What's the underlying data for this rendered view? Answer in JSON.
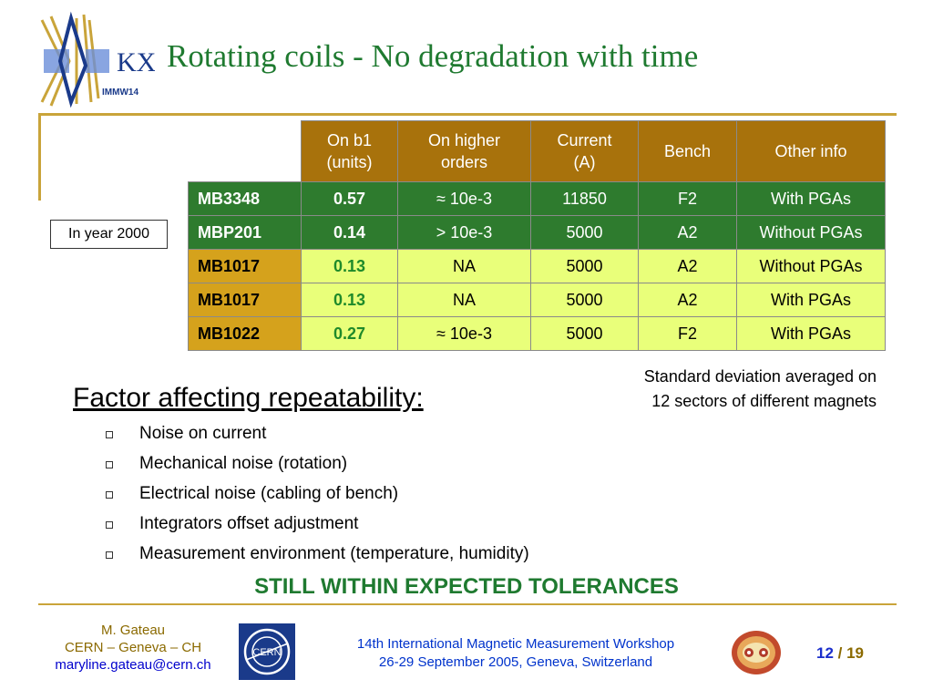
{
  "slide": {
    "title": "Rotating coils - No degradation with time",
    "logo_text": "IMMW14"
  },
  "table": {
    "headers": [
      "",
      "On b1\n(units)",
      "On higher\norders",
      "Current\n(A)",
      "Bench",
      "Other info"
    ],
    "rows": [
      {
        "name": "MB3348",
        "b1": "0.57",
        "higher": "≈ 10e-3",
        "current": "11850",
        "bench": "F2",
        "info": "With PGAs"
      },
      {
        "name": "MBP201",
        "b1": "0.14",
        "higher": "> 10e-3",
        "current": "5000",
        "bench": "A2",
        "info": "Without PGAs"
      },
      {
        "name": "MB1017",
        "b1": "0.13",
        "higher": "NA",
        "current": "5000",
        "bench": "A2",
        "info": "Without PGAs"
      },
      {
        "name": "MB1017",
        "b1": "0.13",
        "higher": "NA",
        "current": "5000",
        "bench": "A2",
        "info": "With PGAs"
      },
      {
        "name": "MB1022",
        "b1": "0.27",
        "higher": "≈ 10e-3",
        "current": "5000",
        "bench": "F2",
        "info": "With PGAs"
      }
    ],
    "year_label": "In year 2000",
    "note_line1": "Standard deviation averaged on",
    "note_line2": "12 sectors of different magnets"
  },
  "factors": {
    "heading": "Factor affecting repeatability:",
    "items": [
      "Noise on current",
      "Mechanical noise (rotation)",
      "Electrical noise (cabling of bench)",
      "Integrators offset adjustment",
      "Measurement environment (temperature, humidity)"
    ],
    "conclusion": "STILL WITHIN EXPECTED TOLERANCES"
  },
  "footer": {
    "author": "M. Gateau",
    "affiliation": "CERN – Geneva – CH",
    "email": "maryline.gateau@cern.ch",
    "workshop_line1": "14th International Magnetic Measurement Workshop",
    "workshop_line2": "26-29 September 2005, Geneva, Switzerland",
    "page": "12",
    "page_sep": " / ",
    "page_total": "19",
    "cern_logo_text": "CERN"
  },
  "colors": {
    "title_green": "#1f7a30",
    "gold": "#c9a43a",
    "header_brown": "#a8720c",
    "row_dark_green": "#2e7b2e",
    "row_light_yellow": "#e9ff7a",
    "row_name_gold": "#d5a21c"
  }
}
